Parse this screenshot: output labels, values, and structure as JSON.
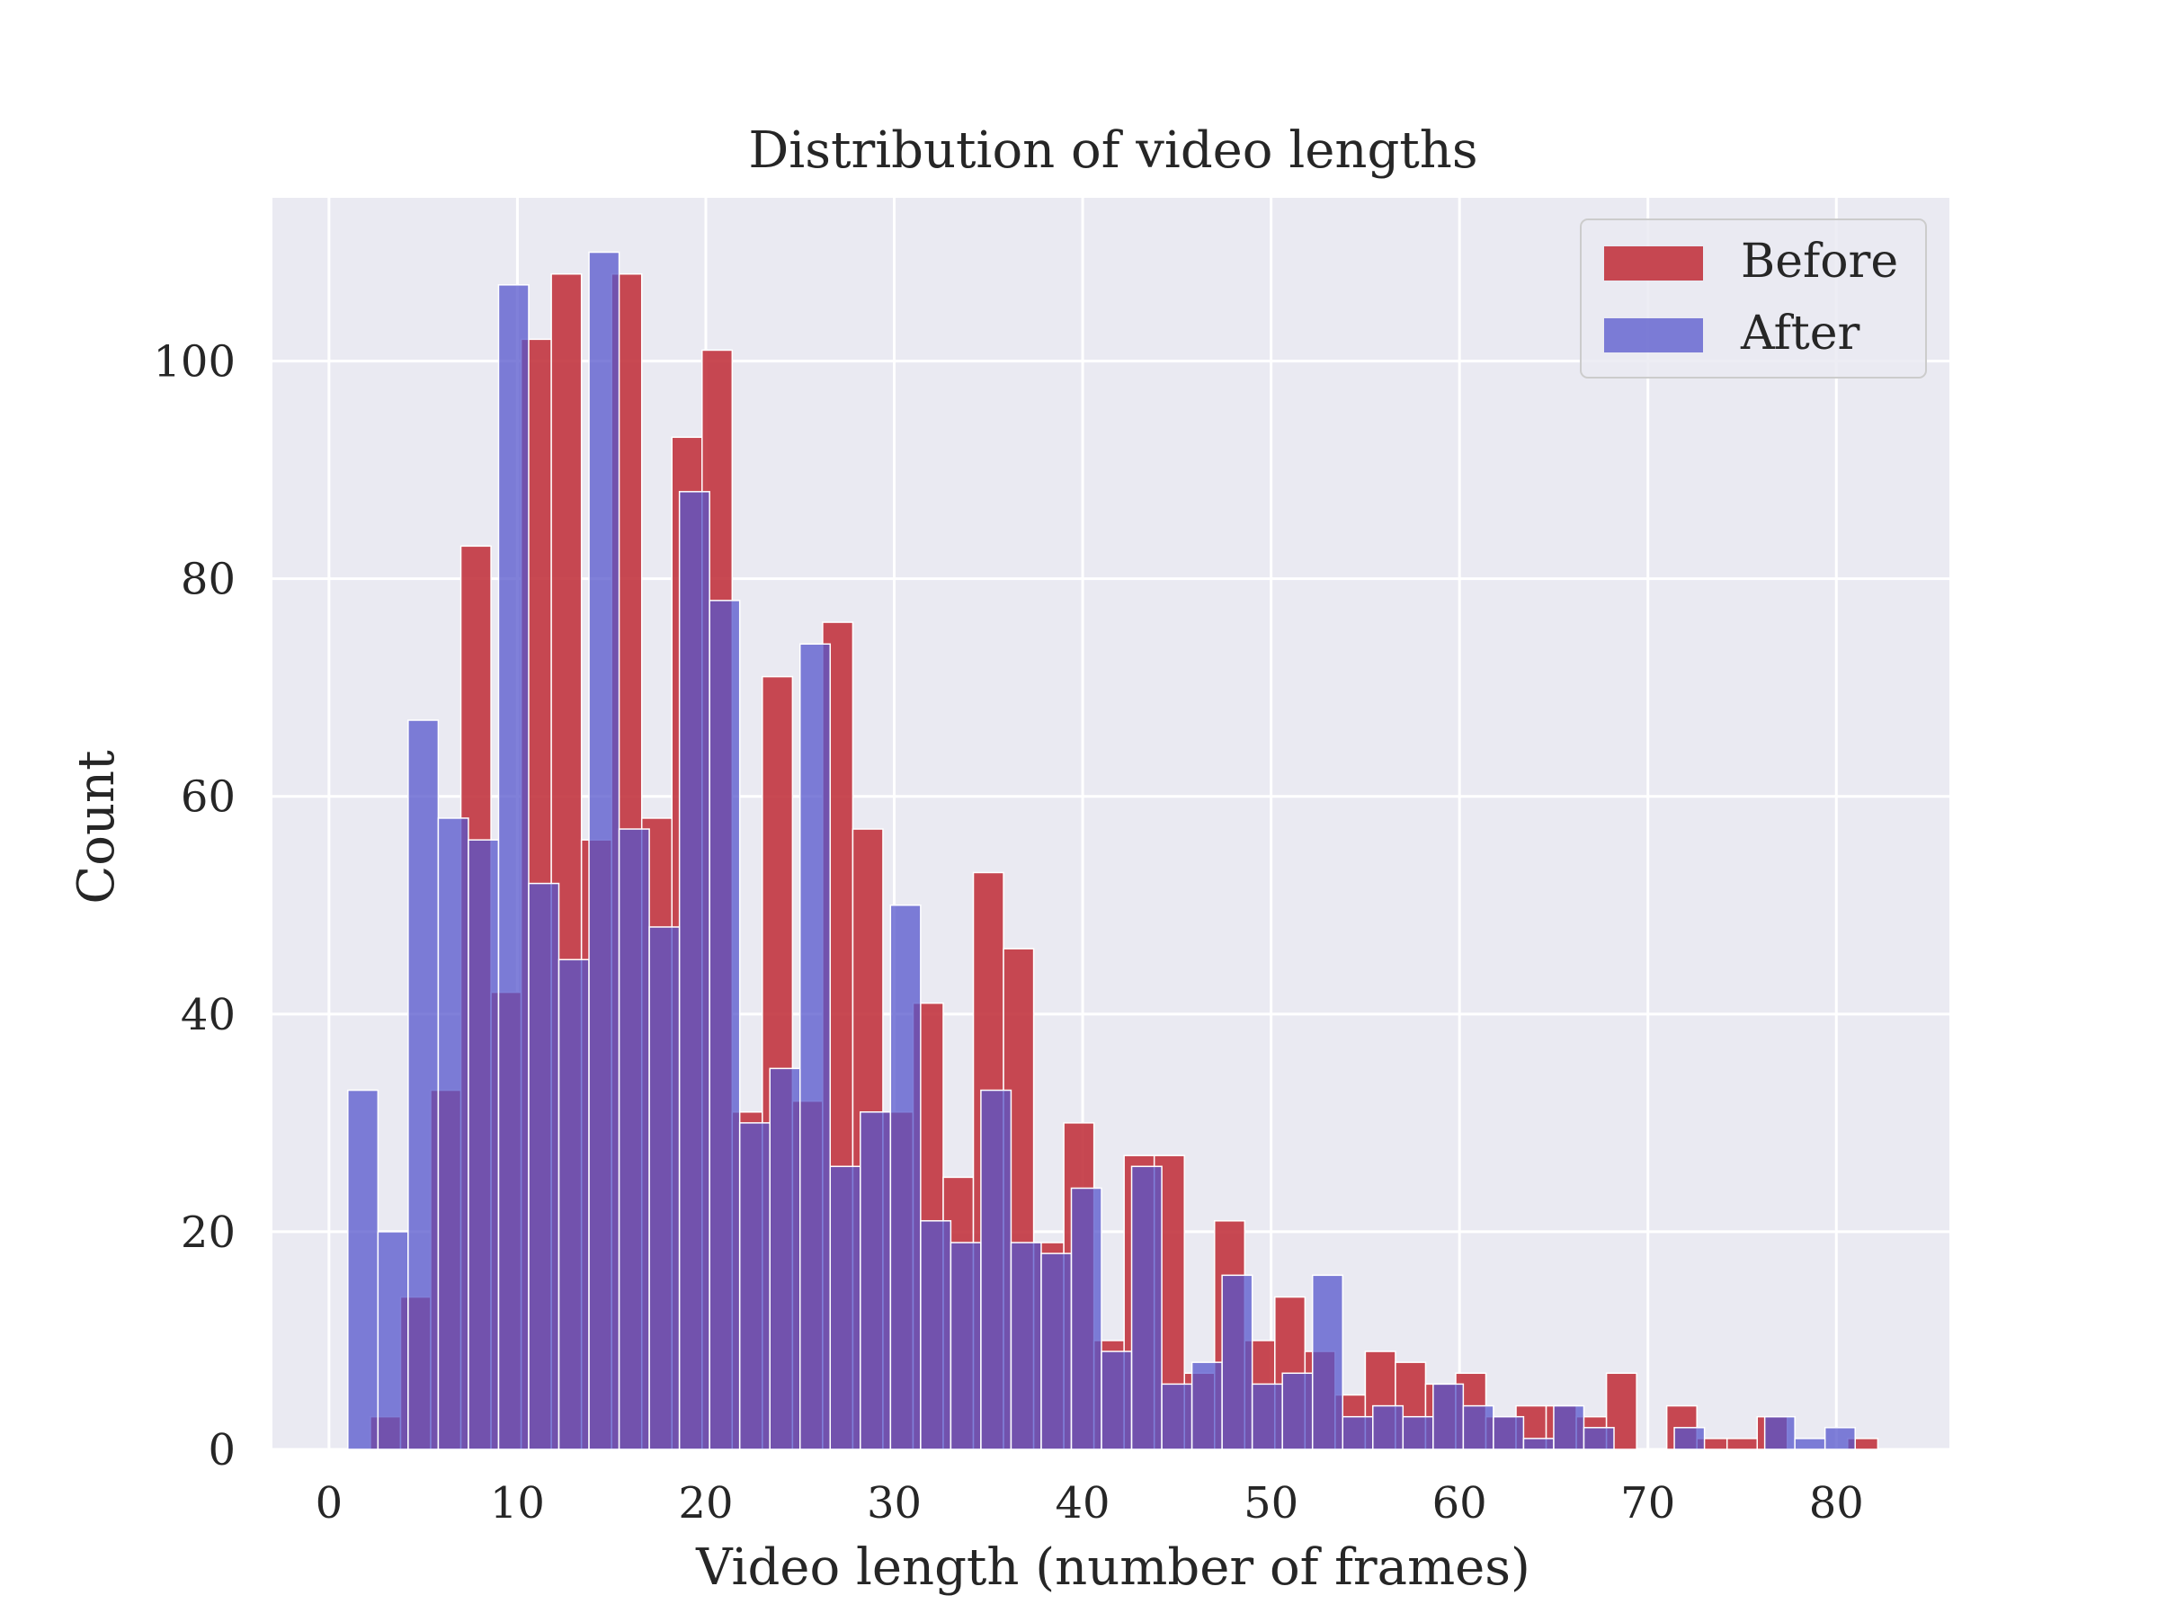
{
  "chart_data": {
    "type": "bar",
    "title": "Distribution of video lengths",
    "xlabel": "Video length (number of frames)",
    "ylabel": "Count",
    "xlim": [
      -3,
      86
    ],
    "ylim": [
      0,
      115
    ],
    "xticks": [
      0,
      10,
      20,
      30,
      40,
      50,
      60,
      70,
      80
    ],
    "yticks": [
      0,
      20,
      40,
      60,
      80,
      100
    ],
    "grid": true,
    "legend_position": "top-right",
    "bin_width": 1.6,
    "series": [
      {
        "name": "Before",
        "color": "#c0303a",
        "bins": [
          [
            2.2,
            3
          ],
          [
            3.8,
            14
          ],
          [
            5.4,
            33
          ],
          [
            7.0,
            83
          ],
          [
            8.6,
            42
          ],
          [
            10.2,
            102
          ],
          [
            11.8,
            108
          ],
          [
            13.4,
            56
          ],
          [
            15.0,
            108
          ],
          [
            16.6,
            58
          ],
          [
            18.2,
            93
          ],
          [
            19.8,
            101
          ],
          [
            21.4,
            31
          ],
          [
            23.0,
            71
          ],
          [
            24.6,
            32
          ],
          [
            26.2,
            76
          ],
          [
            27.8,
            57
          ],
          [
            29.4,
            31
          ],
          [
            31.0,
            41
          ],
          [
            32.6,
            25
          ],
          [
            34.2,
            53
          ],
          [
            35.8,
            46
          ],
          [
            37.4,
            19
          ],
          [
            39.0,
            30
          ],
          [
            40.6,
            10
          ],
          [
            42.2,
            27
          ],
          [
            43.8,
            27
          ],
          [
            45.4,
            7
          ],
          [
            47.0,
            21
          ],
          [
            48.6,
            10
          ],
          [
            50.2,
            14
          ],
          [
            51.8,
            9
          ],
          [
            53.4,
            5
          ],
          [
            55.0,
            9
          ],
          [
            56.6,
            8
          ],
          [
            58.2,
            6
          ],
          [
            59.8,
            7
          ],
          [
            61.4,
            3
          ],
          [
            63.0,
            4
          ],
          [
            64.6,
            4
          ],
          [
            66.2,
            3
          ],
          [
            67.8,
            7
          ],
          [
            71.0,
            4
          ],
          [
            72.6,
            1
          ],
          [
            74.2,
            1
          ],
          [
            75.8,
            3
          ],
          [
            80.6,
            1
          ]
        ]
      },
      {
        "name": "After",
        "color": "#5555cc",
        "bins": [
          [
            1.0,
            33
          ],
          [
            2.6,
            20
          ],
          [
            4.2,
            67
          ],
          [
            5.8,
            58
          ],
          [
            7.4,
            56
          ],
          [
            9.0,
            107
          ],
          [
            10.6,
            52
          ],
          [
            12.2,
            45
          ],
          [
            13.8,
            110
          ],
          [
            15.4,
            57
          ],
          [
            17.0,
            48
          ],
          [
            18.6,
            88
          ],
          [
            20.2,
            78
          ],
          [
            21.8,
            30
          ],
          [
            23.4,
            35
          ],
          [
            25.0,
            74
          ],
          [
            26.6,
            26
          ],
          [
            28.2,
            31
          ],
          [
            29.8,
            50
          ],
          [
            31.4,
            21
          ],
          [
            33.0,
            19
          ],
          [
            34.6,
            33
          ],
          [
            36.2,
            19
          ],
          [
            37.8,
            18
          ],
          [
            39.4,
            24
          ],
          [
            41.0,
            9
          ],
          [
            42.6,
            26
          ],
          [
            44.2,
            6
          ],
          [
            45.8,
            8
          ],
          [
            47.4,
            16
          ],
          [
            49.0,
            6
          ],
          [
            50.6,
            7
          ],
          [
            52.2,
            16
          ],
          [
            53.8,
            3
          ],
          [
            55.4,
            4
          ],
          [
            57.0,
            3
          ],
          [
            58.6,
            6
          ],
          [
            60.2,
            4
          ],
          [
            61.8,
            3
          ],
          [
            63.4,
            1
          ],
          [
            65.0,
            4
          ],
          [
            66.6,
            2
          ],
          [
            71.4,
            2
          ],
          [
            76.2,
            3
          ],
          [
            77.8,
            1
          ],
          [
            79.4,
            2
          ]
        ]
      }
    ]
  }
}
